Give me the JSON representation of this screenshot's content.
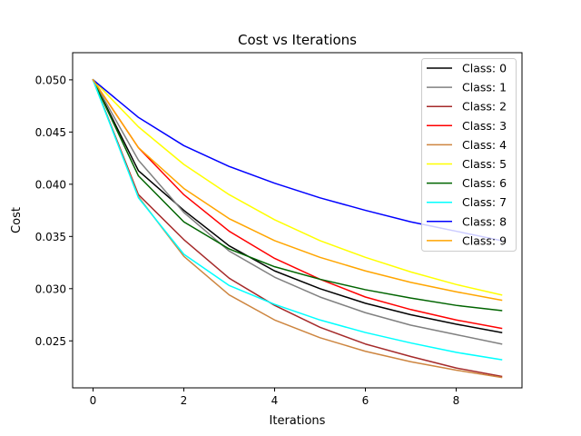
{
  "chart_data": {
    "type": "line",
    "title": "Cost vs Iterations",
    "xlabel": "Iterations",
    "ylabel": "Cost",
    "xlim": [
      -0.45,
      9.45
    ],
    "ylim": [
      0.0205,
      0.0526
    ],
    "xticks": [
      0,
      2,
      4,
      6,
      8
    ],
    "yticks": [
      0.025,
      0.03,
      0.035,
      0.04,
      0.045,
      0.05
    ],
    "ytick_labels": [
      "0.025",
      "0.030",
      "0.035",
      "0.040",
      "0.045",
      "0.050"
    ],
    "grid": false,
    "legend_position": "top-right",
    "x": [
      0,
      1,
      2,
      3,
      4,
      5,
      6,
      7,
      8,
      9
    ],
    "series": [
      {
        "name": "Class: 0",
        "color": "#000000",
        "values": [
          0.05,
          0.0413,
          0.0375,
          0.0341,
          0.0317,
          0.03,
          0.0286,
          0.0275,
          0.0266,
          0.0258
        ]
      },
      {
        "name": "Class: 1",
        "color": "#808080",
        "values": [
          0.05,
          0.0423,
          0.0373,
          0.0336,
          0.0311,
          0.0292,
          0.0277,
          0.0265,
          0.0256,
          0.0247
        ]
      },
      {
        "name": "Class: 2",
        "color": "#a52a2a",
        "values": [
          0.05,
          0.039,
          0.0347,
          0.031,
          0.0284,
          0.0263,
          0.0247,
          0.0235,
          0.0224,
          0.0216
        ]
      },
      {
        "name": "Class: 3",
        "color": "#ff0000",
        "values": [
          0.05,
          0.0435,
          0.039,
          0.0355,
          0.0329,
          0.0309,
          0.0292,
          0.028,
          0.027,
          0.0262
        ]
      },
      {
        "name": "Class: 4",
        "color": "#cd853f",
        "values": [
          0.05,
          0.0388,
          0.0331,
          0.0294,
          0.027,
          0.0253,
          0.024,
          0.023,
          0.0222,
          0.0215
        ]
      },
      {
        "name": "Class: 5",
        "color": "#ffff00",
        "values": [
          0.05,
          0.0455,
          0.0419,
          0.039,
          0.0366,
          0.0346,
          0.033,
          0.0316,
          0.0304,
          0.0294
        ]
      },
      {
        "name": "Class: 6",
        "color": "#006400",
        "values": [
          0.05,
          0.0408,
          0.0364,
          0.0338,
          0.0321,
          0.0309,
          0.0299,
          0.0291,
          0.0284,
          0.0279
        ]
      },
      {
        "name": "Class: 7",
        "color": "#00ffff",
        "values": [
          0.05,
          0.0387,
          0.0333,
          0.0303,
          0.0285,
          0.027,
          0.0258,
          0.0248,
          0.0239,
          0.0232
        ]
      },
      {
        "name": "Class: 8",
        "color": "#0000ff",
        "values": [
          0.05,
          0.0464,
          0.0437,
          0.0417,
          0.0401,
          0.0387,
          0.0375,
          0.0364,
          0.0355,
          0.0346
        ]
      },
      {
        "name": "Class: 9",
        "color": "#ffa500",
        "values": [
          0.05,
          0.0435,
          0.0396,
          0.0367,
          0.0346,
          0.033,
          0.0317,
          0.0306,
          0.0297,
          0.0289
        ]
      }
    ]
  }
}
